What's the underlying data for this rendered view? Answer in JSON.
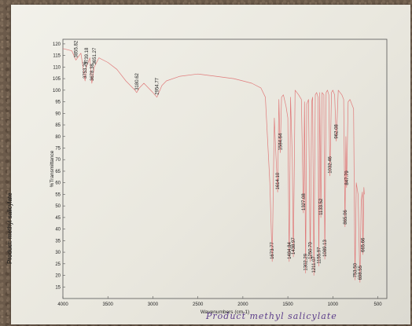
{
  "caption": "Product: methyl salicylate",
  "handwriting": "Product methyl salicylate",
  "colors": {
    "trace": "#e07a7a",
    "paper": "#efeee6",
    "frame": "#555555",
    "ink": "#5b3c8a"
  },
  "chart_data": {
    "type": "line",
    "title": "",
    "xlabel": "Wavenumbers (cm-1)",
    "ylabel": "%Transmittance",
    "xlim": [
      4000,
      400
    ],
    "ylim": [
      10,
      122
    ],
    "x_ticks": [
      4000,
      3500,
      3000,
      2500,
      2000,
      1500,
      1000,
      500
    ],
    "y_ticks": [
      15,
      20,
      25,
      30,
      35,
      40,
      45,
      50,
      55,
      60,
      65,
      70,
      75,
      80,
      85,
      90,
      95,
      100,
      105,
      110,
      115,
      120
    ],
    "grid": false,
    "peaks": [
      {
        "x": 3855.82,
        "y": 113,
        "label": "3855.82"
      },
      {
        "x": 3753.26,
        "y": 104,
        "label": "3753.26"
      },
      {
        "x": 3739.18,
        "y": 110,
        "label": "3739.18"
      },
      {
        "x": 3678.38,
        "y": 103,
        "label": "3678.38"
      },
      {
        "x": 3651.27,
        "y": 110,
        "label": "3651.27"
      },
      {
        "x": 3180.62,
        "y": 99,
        "label": "3180.62"
      },
      {
        "x": 2954.77,
        "y": 97,
        "label": "2954.77"
      },
      {
        "x": 1673.77,
        "y": 26,
        "label": "1673.77"
      },
      {
        "x": 1614.1,
        "y": 56,
        "label": "1614.10"
      },
      {
        "x": 1584.64,
        "y": 73,
        "label": "1584.64"
      },
      {
        "x": 1484.84,
        "y": 26,
        "label": "1484.84"
      },
      {
        "x": 1438.97,
        "y": 28,
        "label": "1438.97"
      },
      {
        "x": 1327.08,
        "y": 47,
        "label": "1327.08"
      },
      {
        "x": 1302.29,
        "y": 21,
        "label": "1302.29"
      },
      {
        "x": 1250.7,
        "y": 26,
        "label": "1250.70"
      },
      {
        "x": 1211.07,
        "y": 20,
        "label": "1211.07"
      },
      {
        "x": 1155.97,
        "y": 24,
        "label": "1155.97"
      },
      {
        "x": 1133.52,
        "y": 45,
        "label": "1133.52"
      },
      {
        "x": 1089.13,
        "y": 27,
        "label": "1089.13"
      },
      {
        "x": 1032.46,
        "y": 63,
        "label": "1032.46"
      },
      {
        "x": 962.08,
        "y": 78,
        "label": "962.08"
      },
      {
        "x": 865.06,
        "y": 41,
        "label": "865.06"
      },
      {
        "x": 847.79,
        "y": 58,
        "label": "847.79"
      },
      {
        "x": 753.5,
        "y": 18,
        "label": "753.50"
      },
      {
        "x": 698.55,
        "y": 17,
        "label": "698.55"
      },
      {
        "x": 665.66,
        "y": 29,
        "label": "665.66"
      }
    ],
    "series": [
      {
        "x": [
          4000,
          3900,
          3855.82,
          3800,
          3753.26,
          3739.18,
          3700,
          3678.38,
          3651.27,
          3600,
          3500,
          3400,
          3300,
          3200,
          3180.62,
          3150,
          3100,
          3050,
          3000,
          2954.77,
          2900,
          2850,
          2700,
          2500,
          2300,
          2100,
          2000,
          1900,
          1800,
          1750,
          1700,
          1673.77,
          1650,
          1630,
          1614.1,
          1600,
          1584.64,
          1570,
          1550,
          1520,
          1500,
          1484.84,
          1470,
          1450,
          1438.97,
          1420,
          1400,
          1380,
          1350,
          1327.08,
          1315,
          1302.29,
          1290,
          1270,
          1250.7,
          1235,
          1225,
          1211.07,
          1195,
          1180,
          1165,
          1155.97,
          1145,
          1133.52,
          1120,
          1100,
          1089.13,
          1075,
          1060,
          1045,
          1032.46,
          1015,
          1000,
          980,
          962.08,
          940,
          920,
          900,
          880,
          865.06,
          855,
          847.79,
          830,
          810,
          790,
          770,
          753.5,
          740,
          720,
          698.55,
          685,
          672,
          665.66,
          655,
          650
        ],
        "y": [
          118,
          117,
          113,
          116,
          104,
          110,
          114,
          103,
          110,
          114,
          112,
          109,
          104,
          100,
          99,
          101,
          103,
          101,
          99,
          97,
          102,
          104,
          106,
          107,
          106,
          105,
          104,
          103,
          101,
          97,
          60,
          26,
          88,
          70,
          56,
          96,
          73,
          97,
          98,
          93,
          88,
          26,
          97,
          70,
          28,
          100,
          99,
          98,
          96,
          47,
          95,
          21,
          94,
          96,
          26,
          95,
          97,
          20,
          98,
          99,
          97,
          24,
          99,
          45,
          99,
          98,
          27,
          99,
          100,
          98,
          63,
          99,
          100,
          98,
          78,
          100,
          99,
          98,
          96,
          41,
          80,
          58,
          95,
          96,
          94,
          92,
          18,
          60,
          55,
          17,
          52,
          56,
          29,
          58,
          55
        ]
      }
    ]
  }
}
